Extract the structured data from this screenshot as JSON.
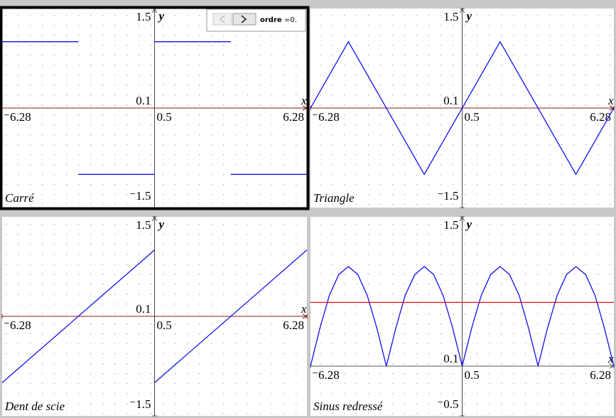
{
  "chart_data": [
    {
      "type": "line",
      "title": "Carré",
      "slider_label": "ordre",
      "slider_value": "=0.",
      "xlim": [
        -6.28,
        6.28
      ],
      "ylim": [
        -1.5,
        1.5
      ],
      "xticks": [
        {
          "value": -6.28,
          "label": "⁻6.28"
        },
        6.28
      ],
      "yticks": [
        {
          "value": -1.5,
          "label": "⁻1.5"
        },
        1.5
      ],
      "x_scale": 0.5,
      "y_scale": 0.1,
      "x_label": "x",
      "y_label": "y",
      "axis_color": "#8b1a1a",
      "series": [
        {
          "color": "#1010ee",
          "x": [
            -6.28,
            -3.14,
            -3.14,
            -3.14,
            0,
            0,
            0,
            3.14,
            3.14,
            3.14,
            6.28
          ],
          "values": [
            1,
            1,
            null,
            -1,
            -1,
            null,
            1,
            1,
            null,
            -1,
            -1
          ]
        }
      ]
    },
    {
      "type": "line",
      "title": "Triangle",
      "xlim": [
        -6.28,
        6.28
      ],
      "ylim": [
        -1.5,
        1.5
      ],
      "xticks": [
        {
          "value": -6.28,
          "label": "⁻6.28"
        },
        6.28
      ],
      "yticks": [
        {
          "value": -1.5,
          "label": "⁻1.5"
        },
        1.5
      ],
      "x_scale": 0.5,
      "y_scale": 0.1,
      "x_label": "x",
      "y_label": "y",
      "axis_color": "#8b1a1a",
      "series": [
        {
          "color": "#1010ee",
          "x": [
            -6.28,
            -4.71,
            -1.57,
            1.57,
            4.71,
            6.28
          ],
          "values": [
            0,
            1,
            -1,
            1,
            -1,
            0
          ]
        }
      ]
    },
    {
      "type": "line",
      "title": "Dent de scie",
      "xlim": [
        -6.28,
        6.28
      ],
      "ylim": [
        -1.5,
        1.5
      ],
      "xticks": [
        {
          "value": -6.28,
          "label": "⁻6.28"
        },
        6.28
      ],
      "yticks": [
        {
          "value": -1.5,
          "label": "⁻1.5"
        },
        1.5
      ],
      "x_scale": 0.5,
      "y_scale": 0.1,
      "x_label": "x",
      "y_label": "y",
      "axis_color": "#8b1a1a",
      "series": [
        {
          "color": "#1010ee",
          "x": [
            -6.28,
            0,
            0,
            0,
            6.28
          ],
          "values": [
            -1,
            1,
            null,
            -1,
            1
          ]
        }
      ]
    },
    {
      "type": "line",
      "title": "Sinus redressé",
      "xlim": [
        -6.28,
        6.28
      ],
      "ylim": [
        -0.5,
        1.5
      ],
      "xticks": [
        {
          "value": -6.28,
          "label": "⁻6.28"
        },
        6.28
      ],
      "yticks": [
        {
          "value": -0.5,
          "label": "⁻0.5"
        },
        1.5
      ],
      "x_scale": 0.5,
      "y_scale": 0.1,
      "x_label": "x",
      "y_label": "y",
      "axis_color": "#555555",
      "series": [
        {
          "color": "#1010ee",
          "x": [
            -6.28,
            -5.89,
            -5.5,
            -5.11,
            -4.71,
            -4.32,
            -3.93,
            -3.53,
            -3.14,
            -2.75,
            -2.36,
            -1.96,
            -1.57,
            -1.18,
            -0.79,
            -0.39,
            0,
            0.39,
            0.79,
            1.18,
            1.57,
            1.96,
            2.36,
            2.75,
            3.14,
            3.53,
            3.93,
            4.32,
            4.71,
            5.11,
            5.5,
            5.89,
            6.28
          ],
          "values": [
            0,
            0.38,
            0.71,
            0.92,
            1,
            0.92,
            0.71,
            0.38,
            0,
            0.38,
            0.71,
            0.92,
            1,
            0.92,
            0.71,
            0.38,
            0,
            0.38,
            0.71,
            0.92,
            1,
            0.92,
            0.71,
            0.38,
            0,
            0.38,
            0.71,
            0.92,
            1,
            0.92,
            0.71,
            0.38,
            0
          ]
        },
        {
          "color": "#e01010",
          "x": [
            -6.28,
            6.28
          ],
          "values": [
            0.64,
            0.64
          ]
        }
      ]
    }
  ]
}
